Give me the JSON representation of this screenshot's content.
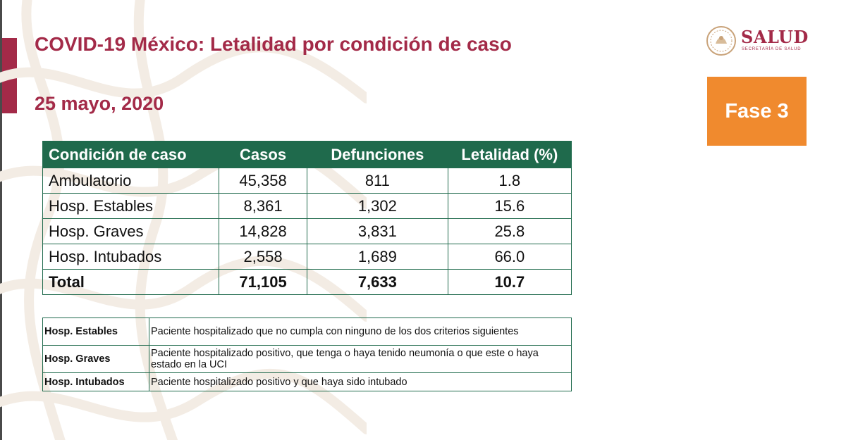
{
  "header": {
    "title": "COVID-19 México: Letalidad por condición de caso",
    "date": "25 mayo, 2020"
  },
  "logo": {
    "name": "SALUD",
    "subtitle": "SECRETARÍA DE SALUD"
  },
  "phase_badge": {
    "label": "Fase 3",
    "color": "#f08a2e"
  },
  "colors": {
    "title": "#a32a48",
    "table_header": "#1f6a4c",
    "accent_bar": "#a32a48"
  },
  "lethality_table": {
    "columns": [
      "Condición de caso",
      "Casos",
      "Defunciones",
      "Letalidad (%)"
    ],
    "rows": [
      [
        "Ambulatorio",
        "45,358",
        "811",
        "1.8"
      ],
      [
        "Hosp. Estables",
        "8,361",
        "1,302",
        "15.6"
      ],
      [
        "Hosp. Graves",
        "14,828",
        "3,831",
        "25.8"
      ],
      [
        "Hosp. Intubados",
        "2,558",
        "1,689",
        "66.0"
      ]
    ],
    "total": [
      "Total",
      "71,105",
      "7,633",
      "10.7"
    ]
  },
  "definitions": [
    {
      "term": "Hosp. Estables",
      "definition": "Paciente hospitalizado que no cumpla con ninguno de los dos criterios siguientes"
    },
    {
      "term": "Hosp. Graves",
      "definition": "Paciente hospitalizado positivo, que tenga o haya tenido neumonía o que este o haya estado en la UCI"
    },
    {
      "term": "Hosp. Intubados",
      "definition": "Paciente hospitalizado positivo y que haya sido intubado"
    }
  ]
}
